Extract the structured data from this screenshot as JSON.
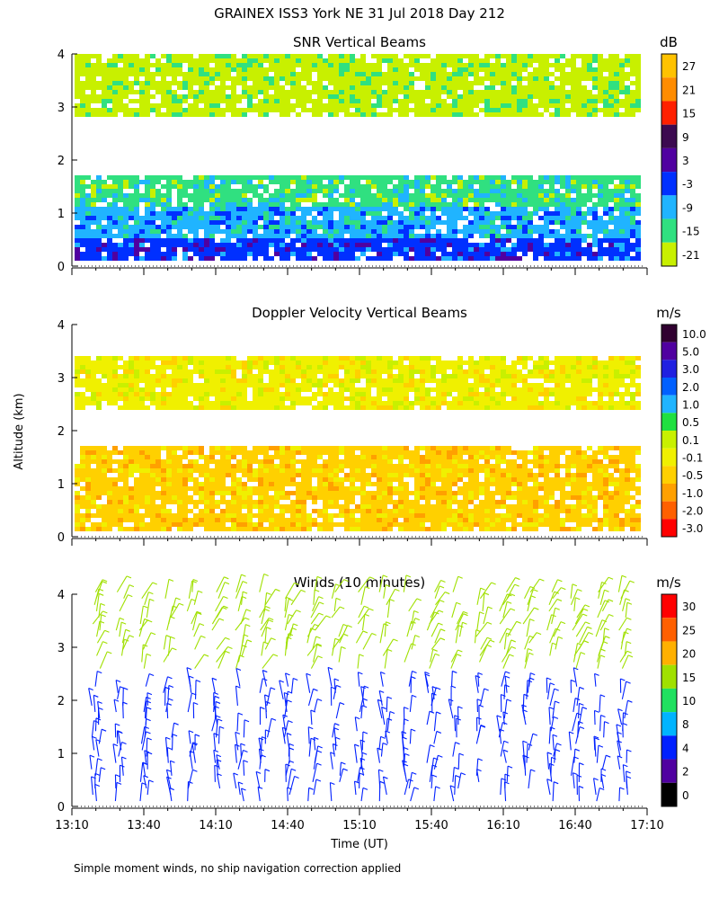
{
  "page": {
    "title": "GRAINEX ISS3 York NE  31 Jul 2018 Day 212",
    "ylabel": "Altitude (km)",
    "xlabel": "Time (UT)",
    "footnote": "Simple moment winds, no ship navigation correction applied"
  },
  "chart_data": [
    {
      "type": "heatmap",
      "title": "SNR Vertical Beams",
      "xlabel": "Time (UT)",
      "ylabel": "Altitude (km)",
      "x_ticks": [
        "13:10",
        "13:40",
        "14:10",
        "14:40",
        "15:10",
        "15:40",
        "16:10",
        "16:40",
        "17:10"
      ],
      "xlim": [
        "13:10",
        "17:10"
      ],
      "y_ticks": [
        0,
        1,
        2,
        3,
        4
      ],
      "ylim": [
        0,
        4
      ],
      "colorbar": {
        "unit": "dB",
        "labels": [
          "27",
          "21",
          "15",
          "9",
          "3",
          "-3",
          "-9",
          "-15",
          "-21"
        ],
        "colors": [
          "#ffc200",
          "#ff8c00",
          "#ff2000",
          "#3c0a50",
          "#5000a0",
          "#0030ff",
          "#20b4ff",
          "#30e080",
          "#c8f000"
        ]
      },
      "bands": [
        {
          "altitude_km": [
            0.1,
            0.5
          ],
          "snr_db": -3
        },
        {
          "altitude_km": [
            0.5,
            1.1
          ],
          "snr_db": -9
        },
        {
          "altitude_km": [
            1.1,
            1.7
          ],
          "snr_db": -15
        },
        {
          "altitude_km": [
            1.7,
            2.8
          ],
          "snr_db": null
        },
        {
          "altitude_km": [
            2.8,
            4.0
          ],
          "snr_db": -21
        }
      ]
    },
    {
      "type": "heatmap",
      "title": "Doppler Velocity Vertical Beams",
      "xlabel": "Time (UT)",
      "ylabel": "Altitude (km)",
      "x_ticks": [
        "13:10",
        "13:40",
        "14:10",
        "14:40",
        "15:10",
        "15:40",
        "16:10",
        "16:40",
        "17:10"
      ],
      "xlim": [
        "13:10",
        "17:10"
      ],
      "y_ticks": [
        0,
        1,
        2,
        3,
        4
      ],
      "ylim": [
        0,
        4
      ],
      "colorbar": {
        "unit": "m/s",
        "labels": [
          "10.0",
          "5.0",
          "3.0",
          "2.0",
          "1.0",
          "0.5",
          "0.1",
          "-0.1",
          "-0.5",
          "-1.0",
          "-2.0",
          "-3.0"
        ],
        "colors": [
          "#300030",
          "#5000a0",
          "#2020e0",
          "#0060ff",
          "#20b4ff",
          "#20e040",
          "#c8f000",
          "#f0f000",
          "#ffd000",
          "#ffa000",
          "#ff6000",
          "#ff0000"
        ]
      },
      "bands": [
        {
          "altitude_km": [
            0.1,
            1.7
          ],
          "velocity_ms": -0.5
        },
        {
          "altitude_km": [
            1.7,
            2.4
          ],
          "velocity_ms": null
        },
        {
          "altitude_km": [
            2.4,
            3.4
          ],
          "velocity_ms": -0.1
        }
      ]
    },
    {
      "type": "scatter",
      "title": "Winds (10 minutes)",
      "xlabel": "Time (UT)",
      "ylabel": "Altitude (km)",
      "x_ticks": [
        "13:10",
        "13:40",
        "14:10",
        "14:40",
        "15:10",
        "15:40",
        "16:10",
        "16:40",
        "17:10"
      ],
      "xlim": [
        "13:10",
        "17:10"
      ],
      "y_ticks": [
        0,
        1,
        2,
        3,
        4
      ],
      "ylim": [
        0,
        4
      ],
      "colorbar": {
        "unit": "m/s",
        "labels": [
          "30",
          "25",
          "20",
          "15",
          "10",
          "8",
          "4",
          "2",
          "0"
        ],
        "colors": [
          "#ff0000",
          "#ff6000",
          "#ffb000",
          "#a0e000",
          "#20e060",
          "#00b4ff",
          "#0020ff",
          "#5000a0",
          "#000000"
        ]
      },
      "profile_times": [
        "13:20",
        "13:30",
        "13:40",
        "13:50",
        "14:00",
        "14:10",
        "14:20",
        "14:30",
        "14:40",
        "14:50",
        "15:00",
        "15:10",
        "15:20",
        "15:30",
        "15:40",
        "15:50",
        "16:00",
        "16:10",
        "16:20",
        "16:30",
        "16:40",
        "16:50",
        "17:00"
      ],
      "layers": [
        {
          "altitude_km": [
            0.1,
            2.3
          ],
          "speed_ms": 4
        },
        {
          "altitude_km": [
            2.6,
            4.1
          ],
          "speed_ms": 15
        }
      ]
    }
  ]
}
